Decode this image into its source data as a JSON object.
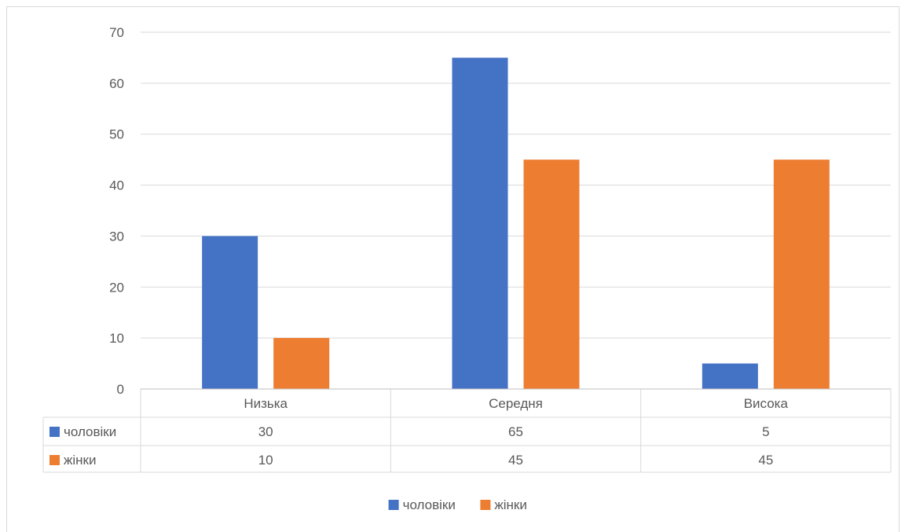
{
  "chart_data": {
    "type": "bar",
    "categories": [
      "Низька",
      "Середня",
      "Висока"
    ],
    "series": [
      {
        "name": "чоловіки",
        "color": "#4472c4",
        "values": [
          30,
          65,
          5
        ]
      },
      {
        "name": "жінки",
        "color": "#ed7d31",
        "values": [
          10,
          45,
          45
        ]
      }
    ],
    "ylim": [
      0,
      70
    ],
    "yticks": [
      0,
      10,
      20,
      30,
      40,
      50,
      60,
      70
    ],
    "grid": true,
    "legend": "bottom-center",
    "data_table": true
  }
}
